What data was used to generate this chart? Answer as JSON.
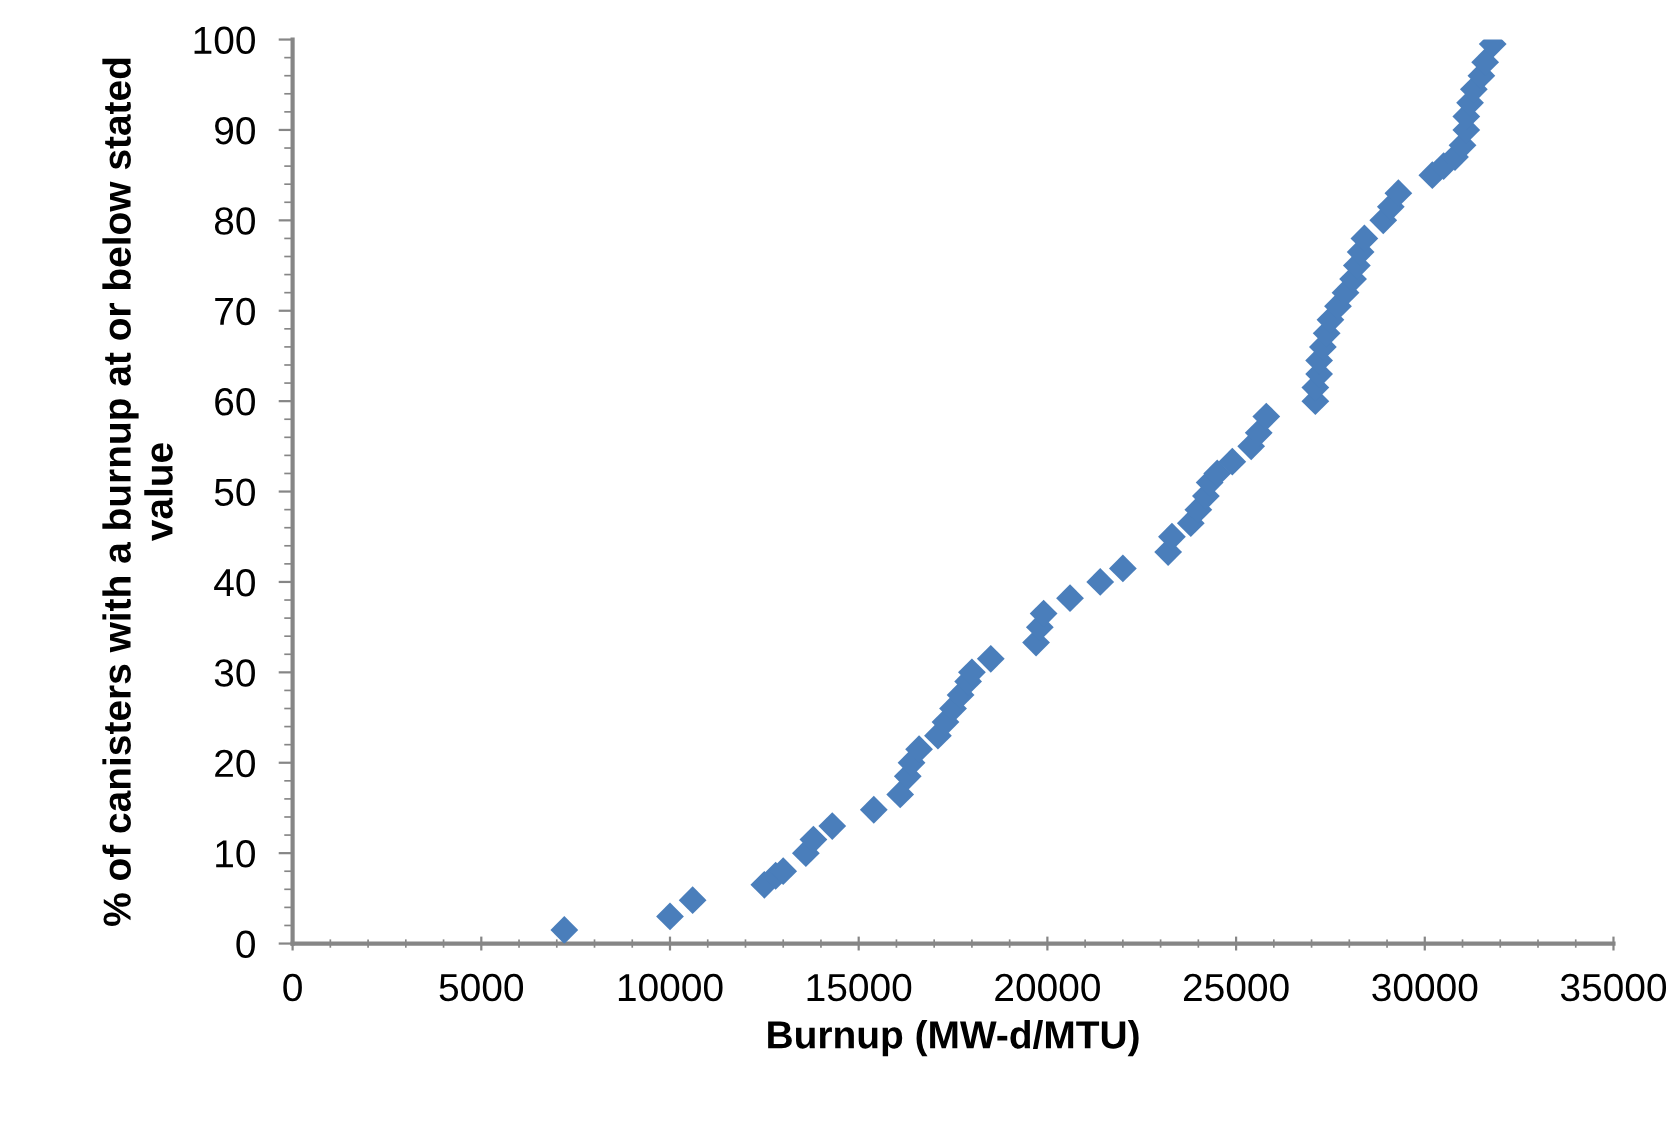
{
  "chart_data": {
    "type": "scatter",
    "xlabel": "Burnup (MW-d/MTU)",
    "ylabel": "% of canisters with a burnup at or below stated value",
    "marker": "diamond",
    "grid": false,
    "legend": false,
    "xlim": [
      0,
      35000
    ],
    "xticks": [
      0,
      5000,
      10000,
      15000,
      20000,
      25000,
      30000,
      35000
    ],
    "ylim": [
      0,
      100
    ],
    "yticks": [
      0,
      10,
      20,
      30,
      40,
      50,
      60,
      70,
      80,
      90,
      100
    ],
    "series": [
      {
        "color": "#4a7ebb",
        "x": [
          7200,
          10000,
          10600,
          12500,
          12800,
          13000,
          13600,
          13800,
          14300,
          15400,
          16100,
          16300,
          16400,
          16600,
          17100,
          17300,
          17500,
          17700,
          17900,
          18000,
          18500,
          19700,
          19800,
          19900,
          20600,
          21400,
          22000,
          23200,
          23300,
          23800,
          24000,
          24200,
          24300,
          24500,
          24900,
          25400,
          25600,
          25800,
          27100,
          27100,
          27200,
          27200,
          27300,
          27400,
          27500,
          27700,
          27900,
          28100,
          28200,
          28300,
          28400,
          28900,
          29100,
          29300,
          30200,
          30500,
          30800,
          31000,
          31100,
          31100,
          31200,
          31300,
          31500,
          31600,
          31800
        ],
        "values": [
          1.5,
          3,
          4.8,
          6.5,
          7.5,
          8,
          10,
          11.5,
          13,
          14.8,
          16.5,
          18.5,
          20,
          21.5,
          23,
          24.5,
          26,
          27.5,
          29,
          30,
          31.5,
          33.3,
          35,
          36.5,
          38.2,
          40,
          41.5,
          43.3,
          45,
          46.5,
          48,
          49.5,
          51,
          52,
          53.3,
          55,
          56.5,
          58.3,
          60,
          61.5,
          63,
          64.5,
          66,
          67.5,
          69,
          70.5,
          72,
          73.5,
          75,
          76.5,
          78,
          80,
          81.5,
          83,
          85,
          86,
          87,
          88.3,
          90,
          91.5,
          93,
          94.5,
          96,
          97.5,
          99.5
        ]
      }
    ]
  }
}
